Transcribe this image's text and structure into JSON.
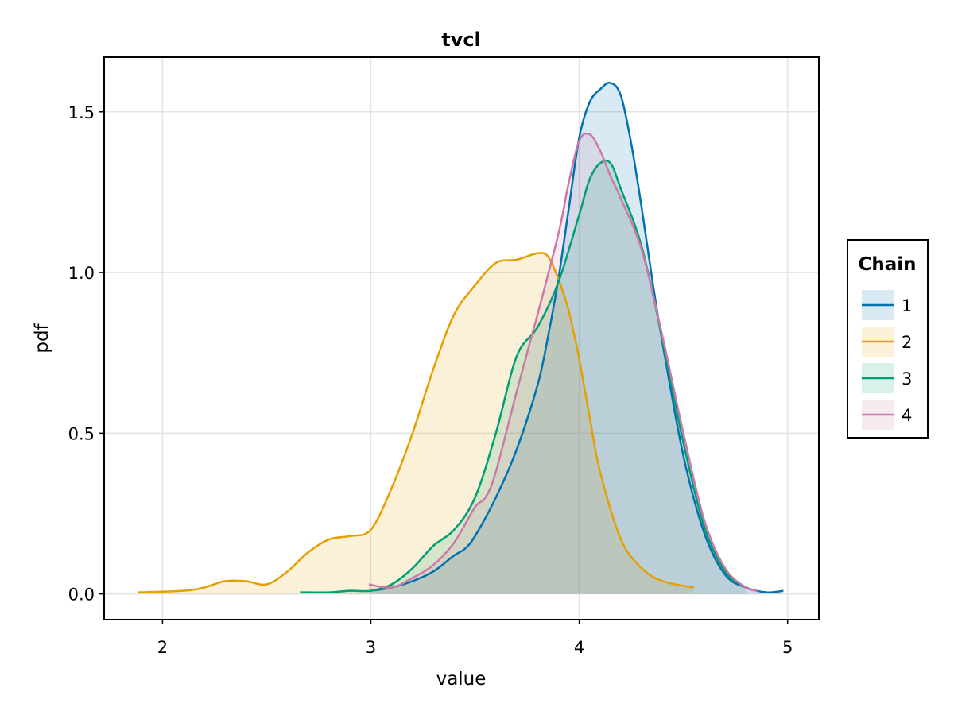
{
  "chart_data": {
    "type": "area",
    "title": "tvcl",
    "xlabel": "value",
    "ylabel": "pdf",
    "xlim": [
      1.72,
      5.15
    ],
    "ylim": [
      -0.08,
      1.67
    ],
    "xticks": [
      "2",
      "3",
      "4",
      "5"
    ],
    "yticks": [
      "0.0",
      "0.5",
      "1.0",
      "1.5"
    ],
    "grid": true,
    "legend": {
      "title": "Chain",
      "placement": "right"
    },
    "series": [
      {
        "name": "1",
        "color": "#0072B2",
        "x": [
          3.0,
          3.1,
          3.2,
          3.3,
          3.4,
          3.45,
          3.5,
          3.6,
          3.7,
          3.8,
          3.85,
          3.9,
          3.95,
          4.0,
          4.05,
          4.1,
          4.15,
          4.2,
          4.25,
          4.3,
          4.35,
          4.4,
          4.5,
          4.6,
          4.7,
          4.8,
          4.9,
          4.98
        ],
        "y": [
          0.01,
          0.02,
          0.04,
          0.07,
          0.12,
          0.14,
          0.18,
          0.3,
          0.45,
          0.65,
          0.8,
          0.98,
          1.2,
          1.42,
          1.53,
          1.57,
          1.59,
          1.55,
          1.4,
          1.2,
          0.98,
          0.78,
          0.43,
          0.19,
          0.06,
          0.02,
          0.005,
          0.01
        ]
      },
      {
        "name": "2",
        "color": "#E69F00",
        "x": [
          1.88,
          2.1,
          2.2,
          2.3,
          2.4,
          2.5,
          2.6,
          2.7,
          2.8,
          2.9,
          3.0,
          3.1,
          3.2,
          3.3,
          3.4,
          3.5,
          3.6,
          3.7,
          3.8,
          3.85,
          3.9,
          3.95,
          4.0,
          4.05,
          4.1,
          4.2,
          4.3,
          4.4,
          4.55
        ],
        "y": [
          0.005,
          0.01,
          0.02,
          0.04,
          0.04,
          0.03,
          0.07,
          0.13,
          0.17,
          0.18,
          0.2,
          0.33,
          0.5,
          0.7,
          0.87,
          0.96,
          1.03,
          1.04,
          1.06,
          1.05,
          0.98,
          0.88,
          0.73,
          0.55,
          0.38,
          0.17,
          0.08,
          0.04,
          0.02
        ]
      },
      {
        "name": "3",
        "color": "#009E73",
        "x": [
          2.66,
          2.8,
          2.9,
          3.0,
          3.1,
          3.2,
          3.3,
          3.4,
          3.5,
          3.6,
          3.7,
          3.8,
          3.9,
          4.0,
          4.05,
          4.1,
          4.15,
          4.2,
          4.3,
          4.4,
          4.5,
          4.6,
          4.7,
          4.8
        ],
        "y": [
          0.005,
          0.005,
          0.01,
          0.01,
          0.03,
          0.08,
          0.15,
          0.2,
          0.3,
          0.5,
          0.74,
          0.83,
          0.97,
          1.18,
          1.29,
          1.34,
          1.34,
          1.26,
          1.08,
          0.79,
          0.47,
          0.21,
          0.07,
          0.02
        ]
      },
      {
        "name": "4",
        "color": "#CC79A7",
        "x": [
          2.99,
          3.1,
          3.2,
          3.3,
          3.4,
          3.5,
          3.55,
          3.6,
          3.7,
          3.8,
          3.9,
          3.95,
          4.0,
          4.05,
          4.1,
          4.15,
          4.2,
          4.3,
          4.4,
          4.5,
          4.6,
          4.7,
          4.8,
          4.86
        ],
        "y": [
          0.03,
          0.02,
          0.05,
          0.09,
          0.16,
          0.27,
          0.3,
          0.38,
          0.63,
          0.87,
          1.12,
          1.28,
          1.41,
          1.43,
          1.38,
          1.3,
          1.23,
          1.07,
          0.8,
          0.5,
          0.23,
          0.08,
          0.02,
          0.01
        ]
      }
    ]
  }
}
